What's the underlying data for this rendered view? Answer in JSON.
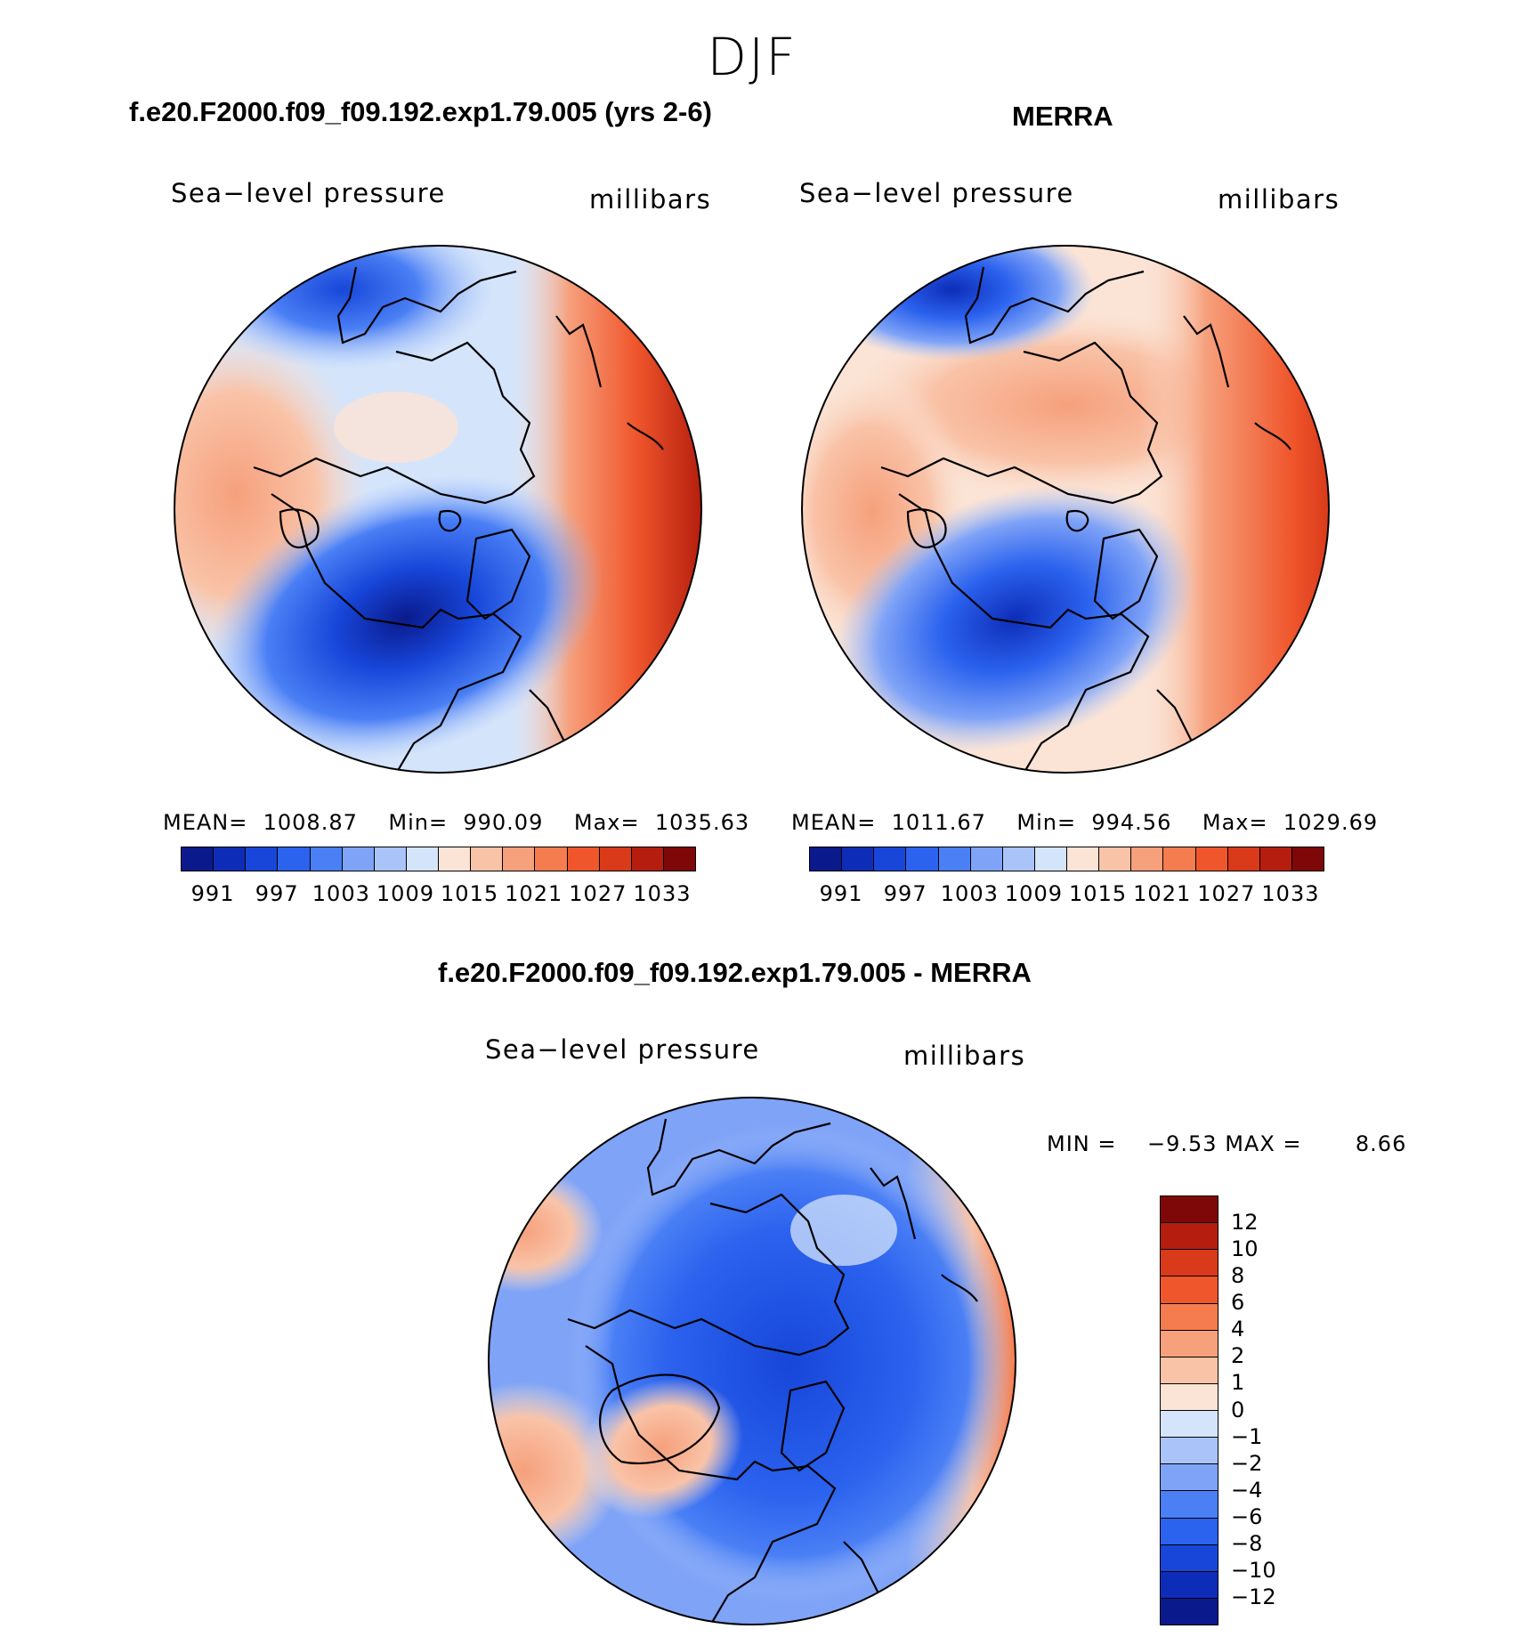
{
  "figure": {
    "title": "DJF"
  },
  "panels": [
    {
      "title": "f.e20.F2000.f09_f09.192.exp1.79.005 (yrs 2-6)",
      "variable": "Sea−level pressure",
      "units": "millibars",
      "stats": {
        "mean_label": "MEAN=",
        "mean": "1008.87",
        "min_label": "Min=",
        "min": "990.09",
        "max_label": "Max=",
        "max": "1035.63"
      }
    },
    {
      "title": "MERRA",
      "variable": "Sea−level pressure",
      "units": "millibars",
      "stats": {
        "mean_label": "MEAN=",
        "mean": "1011.67",
        "min_label": "Min=",
        "min": "994.56",
        "max_label": "Max=",
        "max": "1029.69"
      }
    },
    {
      "title": "f.e20.F2000.f09_f09.192.exp1.79.005 - MERRA",
      "variable": "Sea−level pressure",
      "units": "millibars",
      "stats": {
        "min_label": "MIN =",
        "min": "−9.53",
        "max_label": "MAX =",
        "max": "8.66"
      }
    }
  ],
  "abs_colorbar": {
    "colors": [
      "#0a1a8c",
      "#0d2db8",
      "#1746d9",
      "#2b62ee",
      "#4a7ff5",
      "#7fa3f7",
      "#aac4fa",
      "#d4e4fb",
      "#fbe4d6",
      "#f9c3a8",
      "#f6a07c",
      "#f47c4e",
      "#f0562c",
      "#d93a1a",
      "#b51e0e",
      "#7e0808"
    ],
    "ticks": [
      "991",
      "997",
      "1003",
      "1009",
      "1015",
      "1021",
      "1027",
      "1033"
    ]
  },
  "diff_colorbar": {
    "colors": [
      "#0a1a8c",
      "#0d2db8",
      "#1746d9",
      "#2b62ee",
      "#4a7ff5",
      "#7fa3f7",
      "#aac4fa",
      "#d4e4fb",
      "#fbe4d6",
      "#f9c3a8",
      "#f6a07c",
      "#f47c4e",
      "#f0562c",
      "#d93a1a",
      "#b51e0e",
      "#7e0808"
    ],
    "ticks": [
      "−12",
      "−10",
      "−8",
      "−6",
      "−4",
      "−2",
      "−1",
      "0",
      "1",
      "2",
      "4",
      "6",
      "8",
      "10",
      "12"
    ]
  }
}
